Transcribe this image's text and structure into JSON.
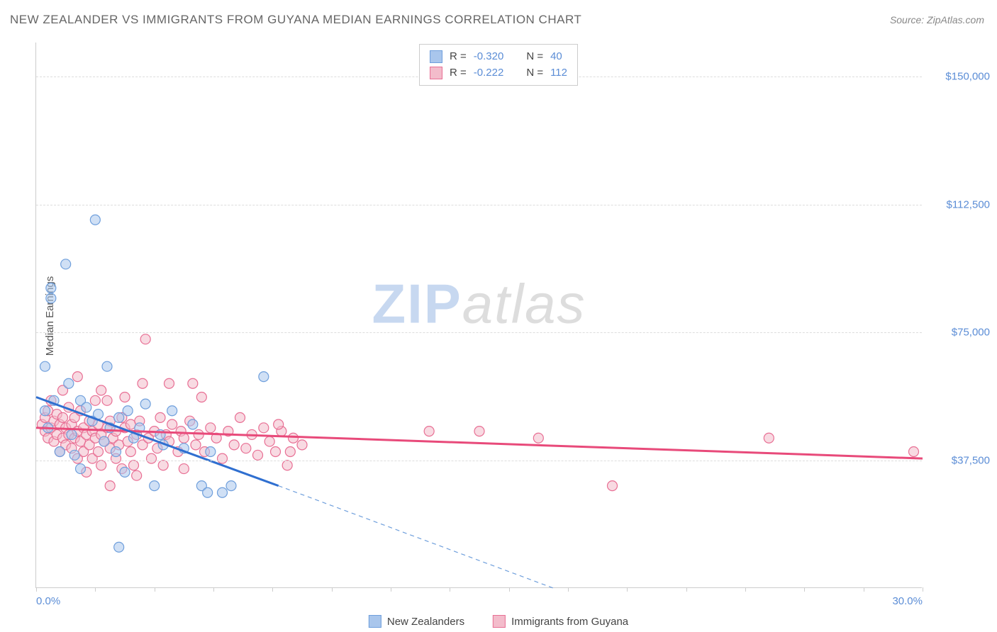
{
  "title": "NEW ZEALANDER VS IMMIGRANTS FROM GUYANA MEDIAN EARNINGS CORRELATION CHART",
  "source": "Source: ZipAtlas.com",
  "watermark": {
    "part1": "ZIP",
    "part2": "atlas"
  },
  "y_axis_title": "Median Earnings",
  "chart": {
    "type": "scatter",
    "xlim": [
      0,
      30
    ],
    "ylim": [
      0,
      160000
    ],
    "x_ticks_minor": [
      0,
      2,
      4,
      6,
      8,
      10,
      12,
      14,
      16,
      18,
      20,
      22,
      24,
      26,
      28,
      30
    ],
    "x_tick_labels": [
      {
        "val": 0,
        "label": "0.0%"
      },
      {
        "val": 30,
        "label": "30.0%"
      }
    ],
    "y_gridlines": [
      37500,
      75000,
      112500,
      150000
    ],
    "y_tick_labels": [
      {
        "val": 37500,
        "label": "$37,500"
      },
      {
        "val": 75000,
        "label": "$75,000"
      },
      {
        "val": 112500,
        "label": "$112,500"
      },
      {
        "val": 150000,
        "label": "$150,000"
      }
    ],
    "background_color": "#ffffff",
    "grid_color": "#dddddd",
    "axis_color": "#cccccc",
    "marker_radius": 7,
    "marker_opacity": 0.55,
    "series": [
      {
        "name": "New Zealanders",
        "color_fill": "#a9c6ec",
        "color_stroke": "#6f9fdc",
        "R": "-0.320",
        "N": "40",
        "trend": {
          "x1": 0,
          "y1": 56000,
          "x2": 8.2,
          "y2": 30000,
          "color": "#2f6fd0",
          "width": 3
        },
        "trend_ext": {
          "x1": 8.2,
          "y1": 30000,
          "x2": 17.5,
          "y2": 0,
          "color": "#6f9fdc",
          "dash": "6,5",
          "width": 1.2
        },
        "points": [
          [
            0.3,
            65000
          ],
          [
            0.3,
            52000
          ],
          [
            0.4,
            47000
          ],
          [
            0.5,
            88000
          ],
          [
            0.5,
            85000
          ],
          [
            0.6,
            55000
          ],
          [
            0.8,
            40000
          ],
          [
            1.0,
            95000
          ],
          [
            1.1,
            60000
          ],
          [
            1.2,
            45000
          ],
          [
            1.3,
            39000
          ],
          [
            1.5,
            55000
          ],
          [
            1.5,
            35000
          ],
          [
            1.7,
            53000
          ],
          [
            1.9,
            49000
          ],
          [
            2.0,
            108000
          ],
          [
            2.1,
            51000
          ],
          [
            2.3,
            43000
          ],
          [
            2.4,
            65000
          ],
          [
            2.5,
            47000
          ],
          [
            2.7,
            40000
          ],
          [
            2.8,
            50000
          ],
          [
            3.0,
            34000
          ],
          [
            3.1,
            52000
          ],
          [
            3.3,
            44000
          ],
          [
            3.5,
            47000
          ],
          [
            3.7,
            54000
          ],
          [
            4.0,
            30000
          ],
          [
            4.2,
            45000
          ],
          [
            4.3,
            42000
          ],
          [
            4.6,
            52000
          ],
          [
            5.0,
            41000
          ],
          [
            5.3,
            48000
          ],
          [
            5.6,
            30000
          ],
          [
            5.8,
            28000
          ],
          [
            5.9,
            40000
          ],
          [
            6.3,
            28000
          ],
          [
            2.8,
            12000
          ],
          [
            6.6,
            30000
          ],
          [
            7.7,
            62000
          ]
        ]
      },
      {
        "name": "Immigrants from Guyana",
        "color_fill": "#f3bccb",
        "color_stroke": "#e86f94",
        "R": "-0.222",
        "N": "112",
        "trend": {
          "x1": 0,
          "y1": 47000,
          "x2": 30,
          "y2": 38000,
          "color": "#e84a7a",
          "width": 3
        },
        "points": [
          [
            0.2,
            48000
          ],
          [
            0.3,
            46000
          ],
          [
            0.3,
            50000
          ],
          [
            0.4,
            44000
          ],
          [
            0.4,
            52000
          ],
          [
            0.5,
            47000
          ],
          [
            0.5,
            55000
          ],
          [
            0.6,
            43000
          ],
          [
            0.6,
            49000
          ],
          [
            0.7,
            45000
          ],
          [
            0.7,
            51000
          ],
          [
            0.8,
            40000
          ],
          [
            0.8,
            48000
          ],
          [
            0.9,
            44000
          ],
          [
            0.9,
            50000
          ],
          [
            1.0,
            42000
          ],
          [
            1.0,
            47000
          ],
          [
            1.1,
            45000
          ],
          [
            1.1,
            53000
          ],
          [
            1.2,
            41000
          ],
          [
            1.2,
            48000
          ],
          [
            1.3,
            44000
          ],
          [
            1.3,
            50000
          ],
          [
            1.4,
            38000
          ],
          [
            1.4,
            46000
          ],
          [
            1.5,
            43000
          ],
          [
            1.5,
            52000
          ],
          [
            1.6,
            40000
          ],
          [
            1.6,
            47000
          ],
          [
            1.7,
            45000
          ],
          [
            1.8,
            42000
          ],
          [
            1.8,
            49000
          ],
          [
            1.9,
            38000
          ],
          [
            1.9,
            46000
          ],
          [
            2.0,
            44000
          ],
          [
            2.0,
            55000
          ],
          [
            2.1,
            40000
          ],
          [
            2.1,
            48000
          ],
          [
            2.2,
            36000
          ],
          [
            2.2,
            45000
          ],
          [
            2.3,
            43000
          ],
          [
            2.4,
            47000
          ],
          [
            2.4,
            55000
          ],
          [
            2.5,
            41000
          ],
          [
            2.5,
            49000
          ],
          [
            2.6,
            44000
          ],
          [
            2.7,
            38000
          ],
          [
            2.7,
            46000
          ],
          [
            2.8,
            42000
          ],
          [
            2.9,
            50000
          ],
          [
            2.9,
            35000
          ],
          [
            3.0,
            47000
          ],
          [
            3.1,
            43000
          ],
          [
            3.2,
            40000
          ],
          [
            3.2,
            48000
          ],
          [
            3.3,
            36000
          ],
          [
            3.4,
            45000
          ],
          [
            3.4,
            33000
          ],
          [
            3.5,
            49000
          ],
          [
            3.6,
            42000
          ],
          [
            3.6,
            60000
          ],
          [
            3.7,
            73000
          ],
          [
            3.8,
            44000
          ],
          [
            3.9,
            38000
          ],
          [
            4.0,
            46000
          ],
          [
            4.1,
            41000
          ],
          [
            4.2,
            50000
          ],
          [
            4.3,
            36000
          ],
          [
            4.4,
            45000
          ],
          [
            4.5,
            43000
          ],
          [
            4.5,
            60000
          ],
          [
            4.6,
            48000
          ],
          [
            4.8,
            40000
          ],
          [
            4.9,
            46000
          ],
          [
            5.0,
            44000
          ],
          [
            5.0,
            35000
          ],
          [
            5.2,
            49000
          ],
          [
            5.3,
            60000
          ],
          [
            5.4,
            42000
          ],
          [
            5.5,
            45000
          ],
          [
            5.7,
            40000
          ],
          [
            5.9,
            47000
          ],
          [
            5.6,
            56000
          ],
          [
            6.1,
            44000
          ],
          [
            6.3,
            38000
          ],
          [
            6.5,
            46000
          ],
          [
            6.7,
            42000
          ],
          [
            6.9,
            50000
          ],
          [
            7.1,
            41000
          ],
          [
            7.3,
            45000
          ],
          [
            7.5,
            39000
          ],
          [
            7.7,
            47000
          ],
          [
            7.9,
            43000
          ],
          [
            8.1,
            40000
          ],
          [
            8.3,
            46000
          ],
          [
            8.5,
            36000
          ],
          [
            8.7,
            44000
          ],
          [
            9.0,
            42000
          ],
          [
            8.2,
            48000
          ],
          [
            8.6,
            40000
          ],
          [
            13.3,
            46000
          ],
          [
            15.0,
            46000
          ],
          [
            17.0,
            44000
          ],
          [
            19.5,
            30000
          ],
          [
            24.8,
            44000
          ],
          [
            29.7,
            40000
          ],
          [
            1.4,
            62000
          ],
          [
            0.9,
            58000
          ],
          [
            2.2,
            58000
          ],
          [
            3.0,
            56000
          ],
          [
            2.5,
            30000
          ],
          [
            1.7,
            34000
          ]
        ]
      }
    ]
  },
  "stats_labels": {
    "R": "R =",
    "N": "N ="
  }
}
